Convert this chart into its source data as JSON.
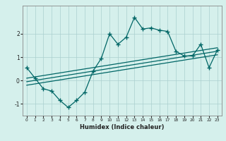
{
  "xlabel": "Humidex (Indice chaleur)",
  "ylabel": "",
  "bg_color": "#d5f0ec",
  "grid_color": "#aacfcf",
  "line_color": "#006666",
  "xlim": [
    -0.5,
    23.5
  ],
  "ylim": [
    -1.5,
    3.2
  ],
  "xticks": [
    0,
    1,
    2,
    3,
    4,
    5,
    6,
    7,
    8,
    9,
    10,
    11,
    12,
    13,
    14,
    15,
    16,
    17,
    18,
    19,
    20,
    21,
    22,
    23
  ],
  "yticks": [
    -1,
    0,
    1,
    2
  ],
  "main_x": [
    0,
    1,
    2,
    3,
    4,
    5,
    6,
    7,
    8,
    9,
    10,
    11,
    12,
    13,
    14,
    15,
    16,
    17,
    18,
    19,
    20,
    21,
    22,
    23
  ],
  "main_y": [
    0.55,
    0.1,
    -0.35,
    -0.45,
    -0.85,
    -1.15,
    -0.85,
    -0.5,
    0.4,
    0.95,
    2.0,
    1.55,
    1.85,
    2.7,
    2.2,
    2.25,
    2.15,
    2.1,
    1.25,
    1.05,
    1.05,
    1.55,
    0.55,
    1.3
  ],
  "reg_line1": [
    [
      0,
      23
    ],
    [
      -0.2,
      1.1
    ]
  ],
  "reg_line2": [
    [
      0,
      23
    ],
    [
      -0.05,
      1.25
    ]
  ],
  "reg_line3": [
    [
      0,
      23
    ],
    [
      0.1,
      1.4
    ]
  ],
  "marker": "+"
}
